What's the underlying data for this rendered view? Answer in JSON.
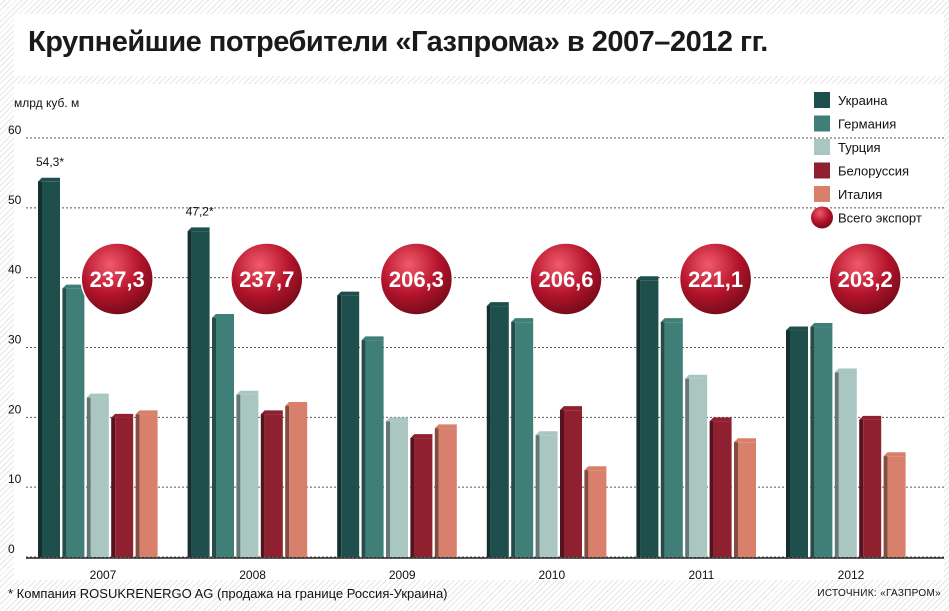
{
  "title": "Крупнейшие потребители «Газпрома» в 2007–2012 гг.",
  "footnote": "* Компания ROSUKRENERGO AG (продажа на границе Россия-Украина)",
  "source": "ИСТОЧНИК: «ГАЗПРОМ»",
  "colors": {
    "Украина": "#1f4f4c",
    "Германия": "#3f7f78",
    "Турция": "#a9c6c1",
    "Белоруссия": "#8f2030",
    "Италия": "#d9806c",
    "Всего экспорт": "#b4142c"
  },
  "chart_data": {
    "type": "bar",
    "title": "Крупнейшие потребители «Газпрома» в 2007–2012 гг.",
    "ylabel": "млрд куб. м",
    "xlabel": "",
    "ylim": [
      0,
      60
    ],
    "yticks": [
      0,
      10,
      20,
      30,
      40,
      50,
      60
    ],
    "grid": true,
    "legend_position": "top-right",
    "categories": [
      "2007",
      "2008",
      "2009",
      "2010",
      "2011",
      "2012"
    ],
    "series": [
      {
        "name": "Украина",
        "values": [
          54.3,
          47.2,
          38,
          36.5,
          40.2,
          33
        ]
      },
      {
        "name": "Германия",
        "values": [
          39,
          34.8,
          31.6,
          34.2,
          34.2,
          33.5
        ]
      },
      {
        "name": "Турция",
        "values": [
          23.4,
          23.8,
          20,
          18,
          26.1,
          27
        ]
      },
      {
        "name": "Белоруссия",
        "values": [
          20.5,
          21,
          17.6,
          21.6,
          20,
          20.2
        ]
      },
      {
        "name": "Италия",
        "values": [
          21,
          22.2,
          19,
          13,
          17,
          15
        ]
      }
    ],
    "totals": {
      "name": "Всего экспорт",
      "values": [
        "237,3",
        "237,7",
        "206,3",
        "206,6",
        "221,1",
        "203,2"
      ]
    },
    "annotations": [
      "54,3*",
      "47,2*"
    ]
  }
}
